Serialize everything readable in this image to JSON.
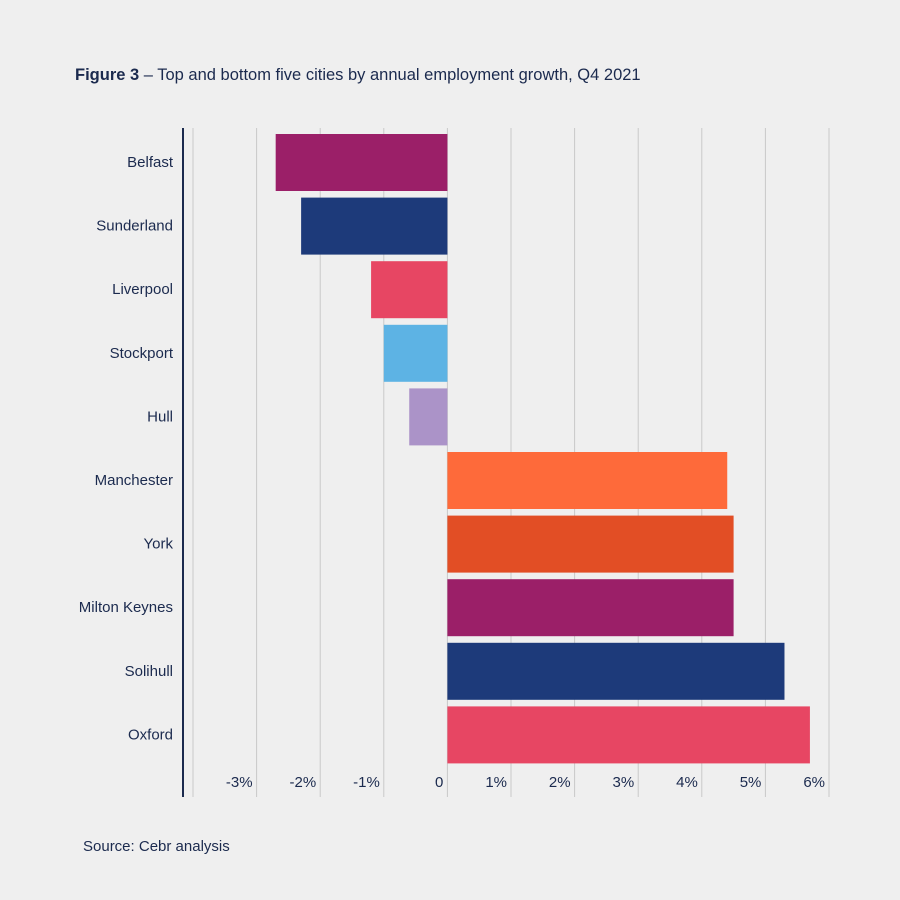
{
  "figure": {
    "label": "Figure 3",
    "separator": " – ",
    "title": "Top and bottom five cities by annual employment growth, Q4 2021"
  },
  "source": "Source: Cebr analysis",
  "chart_data": {
    "type": "bar",
    "orientation": "horizontal",
    "xlabel": "",
    "ylabel": "",
    "xlim": [
      -4,
      6
    ],
    "grid": true,
    "legend": "none",
    "categories": [
      "Belfast",
      "Sunderland",
      "Liverpool",
      "Stockport",
      "Hull",
      "Manchester",
      "York",
      "Milton Keynes",
      "Solihull",
      "Oxford"
    ],
    "values": [
      -2.7,
      -2.3,
      -1.2,
      -1.0,
      -0.6,
      4.4,
      4.5,
      4.5,
      5.3,
      5.7
    ],
    "colors": [
      "#9b1f68",
      "#1d3a7a",
      "#e74663",
      "#5db3e4",
      "#ab93c8",
      "#fe6a3a",
      "#e24e25",
      "#9b1f68",
      "#1d3a7a",
      "#e74663"
    ],
    "ticks": [
      {
        "value": -3,
        "label": "-3%"
      },
      {
        "value": -2,
        "label": "-2%"
      },
      {
        "value": -1,
        "label": "-1%"
      },
      {
        "value": 0,
        "label": "0"
      },
      {
        "value": 1,
        "label": "1%"
      },
      {
        "value": 2,
        "label": "2%"
      },
      {
        "value": 3,
        "label": "3%"
      },
      {
        "value": 4,
        "label": "4%"
      },
      {
        "value": 5,
        "label": "5%"
      },
      {
        "value": 6,
        "label": "6%"
      }
    ],
    "axis_color": "#1b2a4e",
    "grid_color": "#c8c8c8"
  }
}
